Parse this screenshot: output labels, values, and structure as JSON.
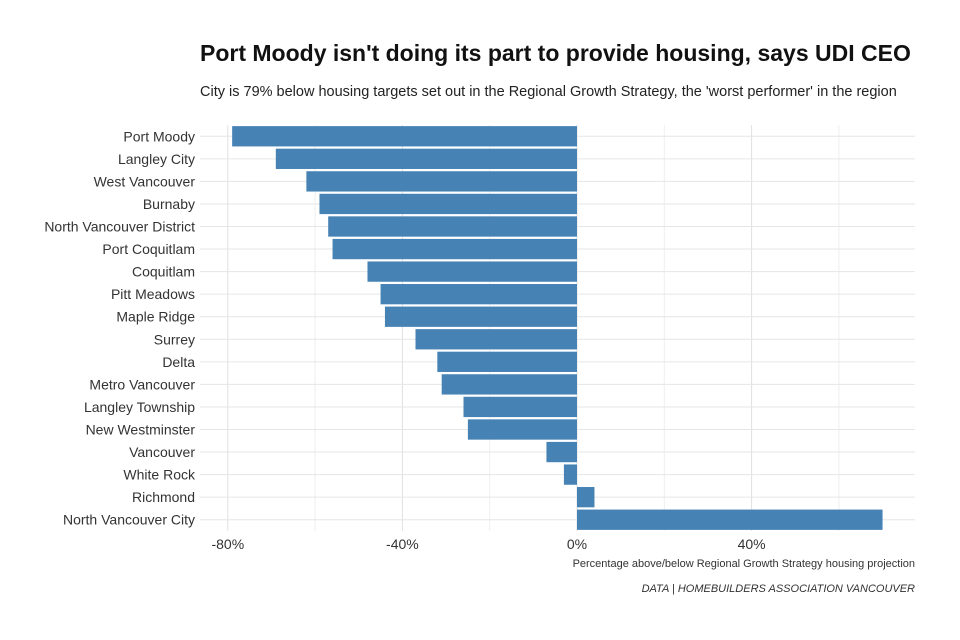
{
  "chart_data": {
    "type": "bar",
    "orientation": "horizontal",
    "title": "Port Moody isn't doing its part to provide housing, says UDI CEO",
    "subtitle": "City is 79% below housing targets set out in the Regional Growth Strategy, the 'worst performer' in the region",
    "xlabel": "Percentage above/below Regional Growth Strategy housing projection",
    "ylabel": "",
    "caption": "DATA | HOMEBUILDERS ASSOCIATION VANCOUVER",
    "xlim": [
      -80,
      80
    ],
    "xticks": [
      -80,
      -40,
      0,
      40
    ],
    "xtick_labels": [
      "-80%",
      "-40%",
      "0%",
      "40%"
    ],
    "grid": true,
    "bar_color": "#4682B4",
    "categories": [
      "Port Moody",
      "Langley City",
      "West Vancouver",
      "Burnaby",
      "North Vancouver District",
      "Port Coquitlam",
      "Coquitlam",
      "Pitt Meadows",
      "Maple Ridge",
      "Surrey",
      "Delta",
      "Metro Vancouver",
      "Langley Township",
      "New Westminster",
      "Vancouver",
      "White Rock",
      "Richmond",
      "North Vancouver City"
    ],
    "values": [
      -79,
      -69,
      -62,
      -59,
      -57,
      -56,
      -48,
      -45,
      -44,
      -37,
      -32,
      -31,
      -26,
      -25,
      -7,
      -3,
      4,
      70
    ]
  }
}
